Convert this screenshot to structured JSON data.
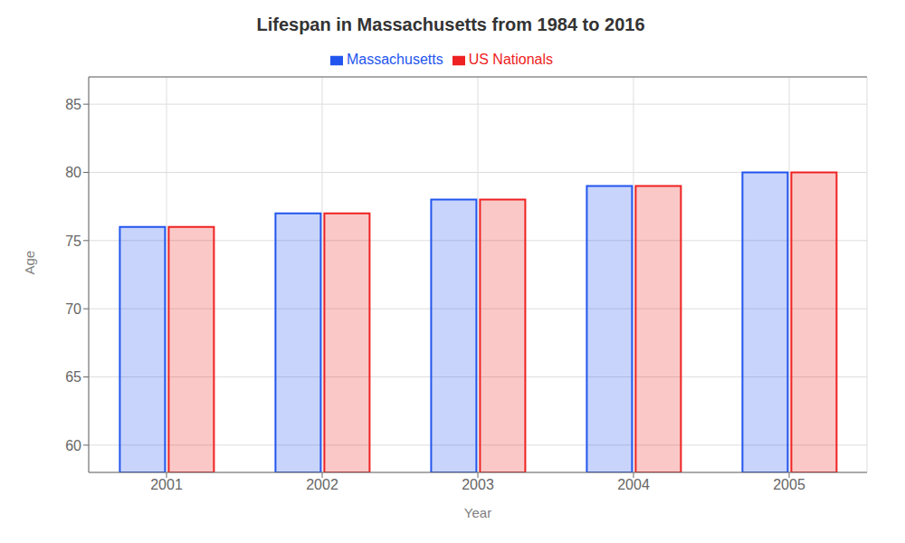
{
  "chart_data": {
    "type": "bar",
    "title": "Lifespan in Massachusetts from 1984 to 2016",
    "x_label": "Year",
    "y_label": "Age",
    "categories": [
      "2001",
      "2002",
      "2003",
      "2004",
      "2005"
    ],
    "series": [
      {
        "name": "Massachusetts",
        "color": "#2255ee",
        "values": [
          76,
          77,
          78,
          79,
          80
        ]
      },
      {
        "name": "US Nationals",
        "color": "#ee2222",
        "values": [
          76,
          77,
          78,
          79,
          80
        ]
      }
    ],
    "ylim": [
      58,
      87
    ],
    "yticks": [
      60,
      65,
      70,
      75,
      80,
      85
    ],
    "grid": true,
    "legend": "top"
  }
}
